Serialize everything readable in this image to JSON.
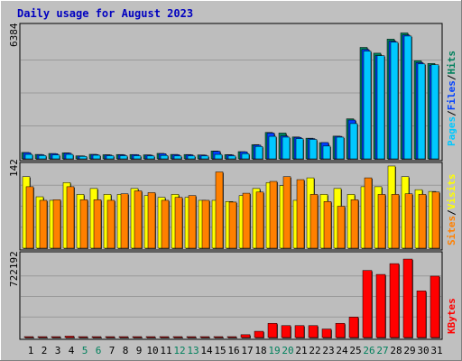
{
  "title": "Daily usage for August 2023",
  "colors": {
    "background": "#c0c0c0",
    "plot": "#bdbdbd",
    "title": "#0000c0",
    "hits": "#00805c",
    "files": "#0040ff",
    "pages": "#00c8ff",
    "visits": "#ffff00",
    "sites": "#ff8000",
    "kbytes": "#ff0000",
    "weekend_day": "#00805c",
    "weekday": "#000000"
  },
  "chart_data": [
    {
      "type": "bar",
      "panel": "top",
      "y_max_label": "6384",
      "ylim": [
        0,
        6384
      ],
      "legend": [
        "Hits",
        "Files",
        "Pages"
      ],
      "categories": [
        "1",
        "2",
        "3",
        "4",
        "5",
        "6",
        "7",
        "8",
        "9",
        "10",
        "11",
        "12",
        "13",
        "14",
        "15",
        "16",
        "17",
        "18",
        "19",
        "20",
        "21",
        "22",
        "23",
        "24",
        "25",
        "26",
        "27",
        "28",
        "29",
        "30",
        "31"
      ],
      "series": [
        {
          "name": "Hits",
          "values": [
            310,
            215,
            260,
            290,
            145,
            220,
            200,
            210,
            210,
            195,
            265,
            215,
            210,
            190,
            380,
            205,
            350,
            690,
            1280,
            1250,
            1060,
            1000,
            785,
            1100,
            1940,
            5400,
            5120,
            5800,
            6100,
            4750,
            4620
          ]
        },
        {
          "name": "Files",
          "values": [
            300,
            200,
            250,
            275,
            140,
            210,
            185,
            195,
            200,
            180,
            250,
            200,
            195,
            180,
            365,
            190,
            340,
            665,
            1250,
            1110,
            1040,
            980,
            790,
            1090,
            1880,
            5300,
            5000,
            5700,
            6000,
            4660,
            4540
          ]
        },
        {
          "name": "Pages",
          "values": [
            215,
            160,
            190,
            215,
            120,
            175,
            150,
            150,
            150,
            140,
            165,
            140,
            140,
            140,
            215,
            140,
            250,
            600,
            1090,
            1050,
            980,
            940,
            620,
            1050,
            1710,
            5220,
            5000,
            5650,
            5950,
            4600,
            4560
          ]
        }
      ]
    },
    {
      "type": "bar",
      "panel": "middle",
      "y_max_label": "142",
      "ylim": [
        0,
        142
      ],
      "legend": [
        "Visits",
        "Sites"
      ],
      "categories": [
        "1",
        "2",
        "3",
        "4",
        "5",
        "6",
        "7",
        "8",
        "9",
        "10",
        "11",
        "12",
        "13",
        "14",
        "15",
        "16",
        "17",
        "18",
        "19",
        "20",
        "21",
        "22",
        "23",
        "24",
        "25",
        "26",
        "27",
        "28",
        "29",
        "30",
        "31"
      ],
      "series": [
        {
          "name": "Visits",
          "values": [
            121,
            87,
            81,
            111,
            91,
            101,
            91,
            91,
            101,
            89,
            86,
            91,
            86,
            81,
            81,
            79,
            89,
            101,
            111,
            106,
            81,
            119,
            91,
            101,
            91,
            104,
            104,
            139,
            121,
            99,
            96
          ]
        },
        {
          "name": "Sites",
          "values": [
            104,
            81,
            82,
            104,
            82,
            82,
            81,
            92,
            97,
            94,
            81,
            86,
            89,
            81,
            129,
            78,
            93,
            95,
            113,
            121,
            116,
            91,
            79,
            71,
            82,
            119,
            91,
            91,
            92,
            91,
            95
          ]
        }
      ]
    },
    {
      "type": "bar",
      "panel": "bottom",
      "y_max_label": "722192",
      "ylim": [
        0,
        722192
      ],
      "legend": [
        "KBytes"
      ],
      "categories": [
        "1",
        "2",
        "3",
        "4",
        "5",
        "6",
        "7",
        "8",
        "9",
        "10",
        "11",
        "12",
        "13",
        "14",
        "15",
        "16",
        "17",
        "18",
        "19",
        "20",
        "21",
        "22",
        "23",
        "24",
        "25",
        "26",
        "27",
        "28",
        "29",
        "30",
        "31"
      ],
      "series": [
        {
          "name": "KBytes",
          "values": [
            5000,
            5000,
            5000,
            12000,
            5000,
            4000,
            4000,
            4000,
            5000,
            4000,
            4000,
            4000,
            4000,
            4000,
            4000,
            4000,
            25000,
            55000,
            125000,
            105000,
            105000,
            105000,
            75000,
            125000,
            180000,
            590000,
            555000,
            650000,
            690000,
            410000,
            540000
          ]
        }
      ]
    }
  ],
  "x_axis": {
    "labels": [
      "1",
      "2",
      "3",
      "4",
      "5",
      "6",
      "7",
      "8",
      "9",
      "10",
      "11",
      "12",
      "13",
      "14",
      "15",
      "16",
      "17",
      "18",
      "19",
      "20",
      "21",
      "22",
      "23",
      "24",
      "25",
      "26",
      "27",
      "28",
      "29",
      "30",
      "31"
    ],
    "weekend_days": [
      5,
      6,
      12,
      13,
      19,
      20,
      26,
      27
    ]
  }
}
